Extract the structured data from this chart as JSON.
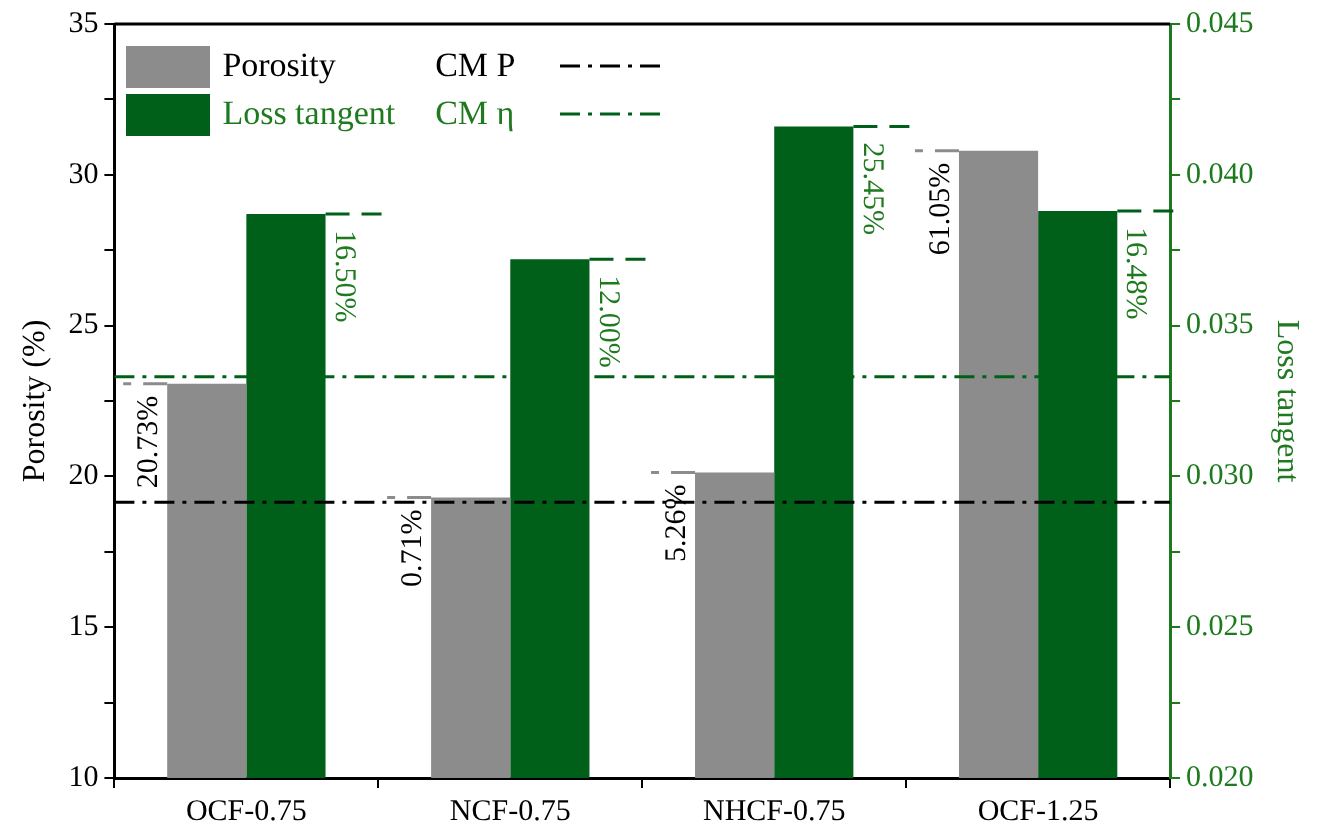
{
  "chart_data": {
    "type": "bar",
    "categories": [
      "OCF-0.75",
      "NCF-0.75",
      "NHCF-0.75",
      "OCF-1.25"
    ],
    "ylabel": "Porosity (%)",
    "y2label": "Loss tangent",
    "series": [
      {
        "name": "Porosity",
        "color": "#8c8c8c",
        "values": [
          23.07,
          19.3,
          20.13,
          30.8
        ]
      },
      {
        "name": "Loss tangent",
        "color": "#005f19",
        "axis": "y2",
        "values": [
          0.0387,
          0.0372,
          0.0416,
          0.0388
        ]
      }
    ],
    "annotations": [
      {
        "text": "20.73%",
        "x": "OCF-0.75",
        "y": 23.07
      },
      {
        "text": "0.71%",
        "x": "NCF-0.75",
        "y": 19.3
      },
      {
        "text": "5.26%",
        "x": "NHCF-0.75",
        "y": 20.13
      },
      {
        "text": "61.05%",
        "x": "OCF-1.25",
        "y": 30.8
      },
      {
        "text": "16.50%",
        "x": "OCF-0.75",
        "y": 28.7
      },
      {
        "text": "12.00%",
        "x": "NCF-0.75",
        "y": 27.2
      },
      {
        "text": "25.45%",
        "x": "NHCF-0.75",
        "y": 31.6
      },
      {
        "text": "16.48%",
        "x": "OCF-1.25",
        "y": 28.8
      }
    ],
    "ylim": [
      10,
      35
    ],
    "yticks": [
      10,
      {
        "value": 12.5,
        "label": null
      },
      15,
      {
        "value": 17.5,
        "label": null
      },
      20,
      {
        "value": 22.5,
        "label": null
      },
      25,
      {
        "value": 27.5,
        "label": null
      },
      30,
      {
        "value": 32.5,
        "label": null
      },
      35
    ],
    "y2lim": [
      0.02,
      0.045
    ],
    "y2ticks": [
      {
        "value": 0.02,
        "label": "0.020"
      },
      {
        "value": 0.0225,
        "label": null
      },
      {
        "value": 0.025,
        "label": "0.025"
      },
      {
        "value": 0.0275,
        "label": null
      },
      {
        "value": 0.03,
        "label": "0.030"
      },
      {
        "value": 0.0325,
        "label": null
      },
      {
        "value": 0.035,
        "label": "0.035"
      },
      {
        "value": 0.0375,
        "label": null
      },
      {
        "value": 0.04,
        "label": "0.040"
      },
      {
        "value": 0.0425,
        "label": null
      },
      {
        "value": 0.045,
        "label": "0.045"
      }
    ],
    "ref_lines": [
      {
        "axis": "y",
        "value": 19.14,
        "label": "CM P",
        "color": "#000000",
        "line_style": "dashed"
      },
      {
        "axis": "y2",
        "value": 0.0333,
        "label": "CM η",
        "color": "#005f19",
        "line_style": "dashed"
      }
    ],
    "legend": "top left",
    "grid": false
  }
}
